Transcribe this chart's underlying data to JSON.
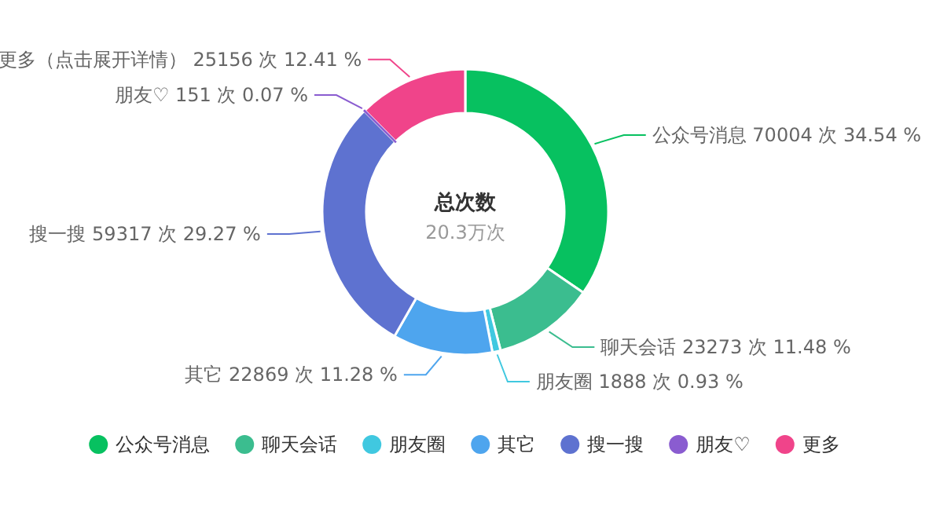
{
  "chart_data": {
    "type": "donut",
    "title": "总次数",
    "subtitle": "20.3万次",
    "categories": [
      "公众号消息",
      "聊天会话",
      "朋友圈",
      "其它",
      "搜一搜",
      "朋友♡",
      "更多"
    ],
    "annotations": [
      "（点击展开详情）"
    ],
    "values": [
      70004,
      23273,
      1888,
      22869,
      59317,
      151,
      25156
    ],
    "value_labels": [
      "70004 次 34.54 %",
      "23273 次 11.48 %",
      "1888 次 0.93 %",
      "22869 次 11.28 %",
      "59317 次 29.27 %",
      "151 次 0.07 %",
      "25156 次 12.41 %"
    ],
    "colors": [
      "#07c160",
      "#3bbd8f",
      "#40c8e0",
      "#4ea5ee",
      "#5e72d0",
      "#8a5cd0",
      "#f0448a"
    ],
    "legend": "bottom"
  }
}
